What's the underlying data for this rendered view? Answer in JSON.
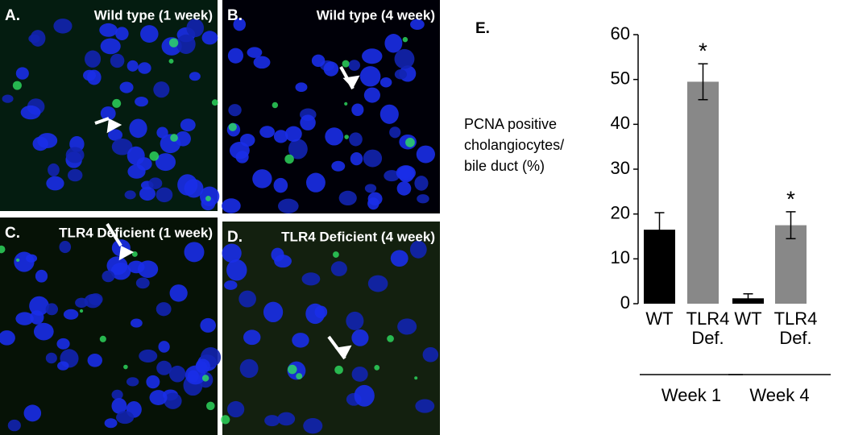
{
  "panels": [
    {
      "letter": "A.",
      "title": "Wild type (1 week)"
    },
    {
      "letter": "B.",
      "title": "Wild type (4 week)"
    },
    {
      "letter": "C.",
      "title": "TLR4 Deficient (1 week)"
    },
    {
      "letter": "D.",
      "title": "TLR4 Deficient (4 week)"
    }
  ],
  "chart_data": {
    "type": "bar",
    "panel_letter": "E.",
    "ylabel_lines": [
      "PCNA positive",
      "cholangiocytes/",
      "bile duct (%)"
    ],
    "groups": [
      "Week 1",
      "Week 4"
    ],
    "series": [
      {
        "name": "WT",
        "color": "#000000",
        "values": [
          16.5,
          1.2
        ],
        "errors": [
          3.8,
          1.0
        ]
      },
      {
        "name": "TLR4 Def.",
        "color": "#888888",
        "values": [
          49.5,
          17.5
        ],
        "errors": [
          4.0,
          3.0
        ],
        "significance": [
          "*",
          "*"
        ]
      }
    ],
    "ylim": [
      0,
      60
    ],
    "yticks": [
      0,
      10,
      20,
      30,
      40,
      50,
      60
    ]
  }
}
